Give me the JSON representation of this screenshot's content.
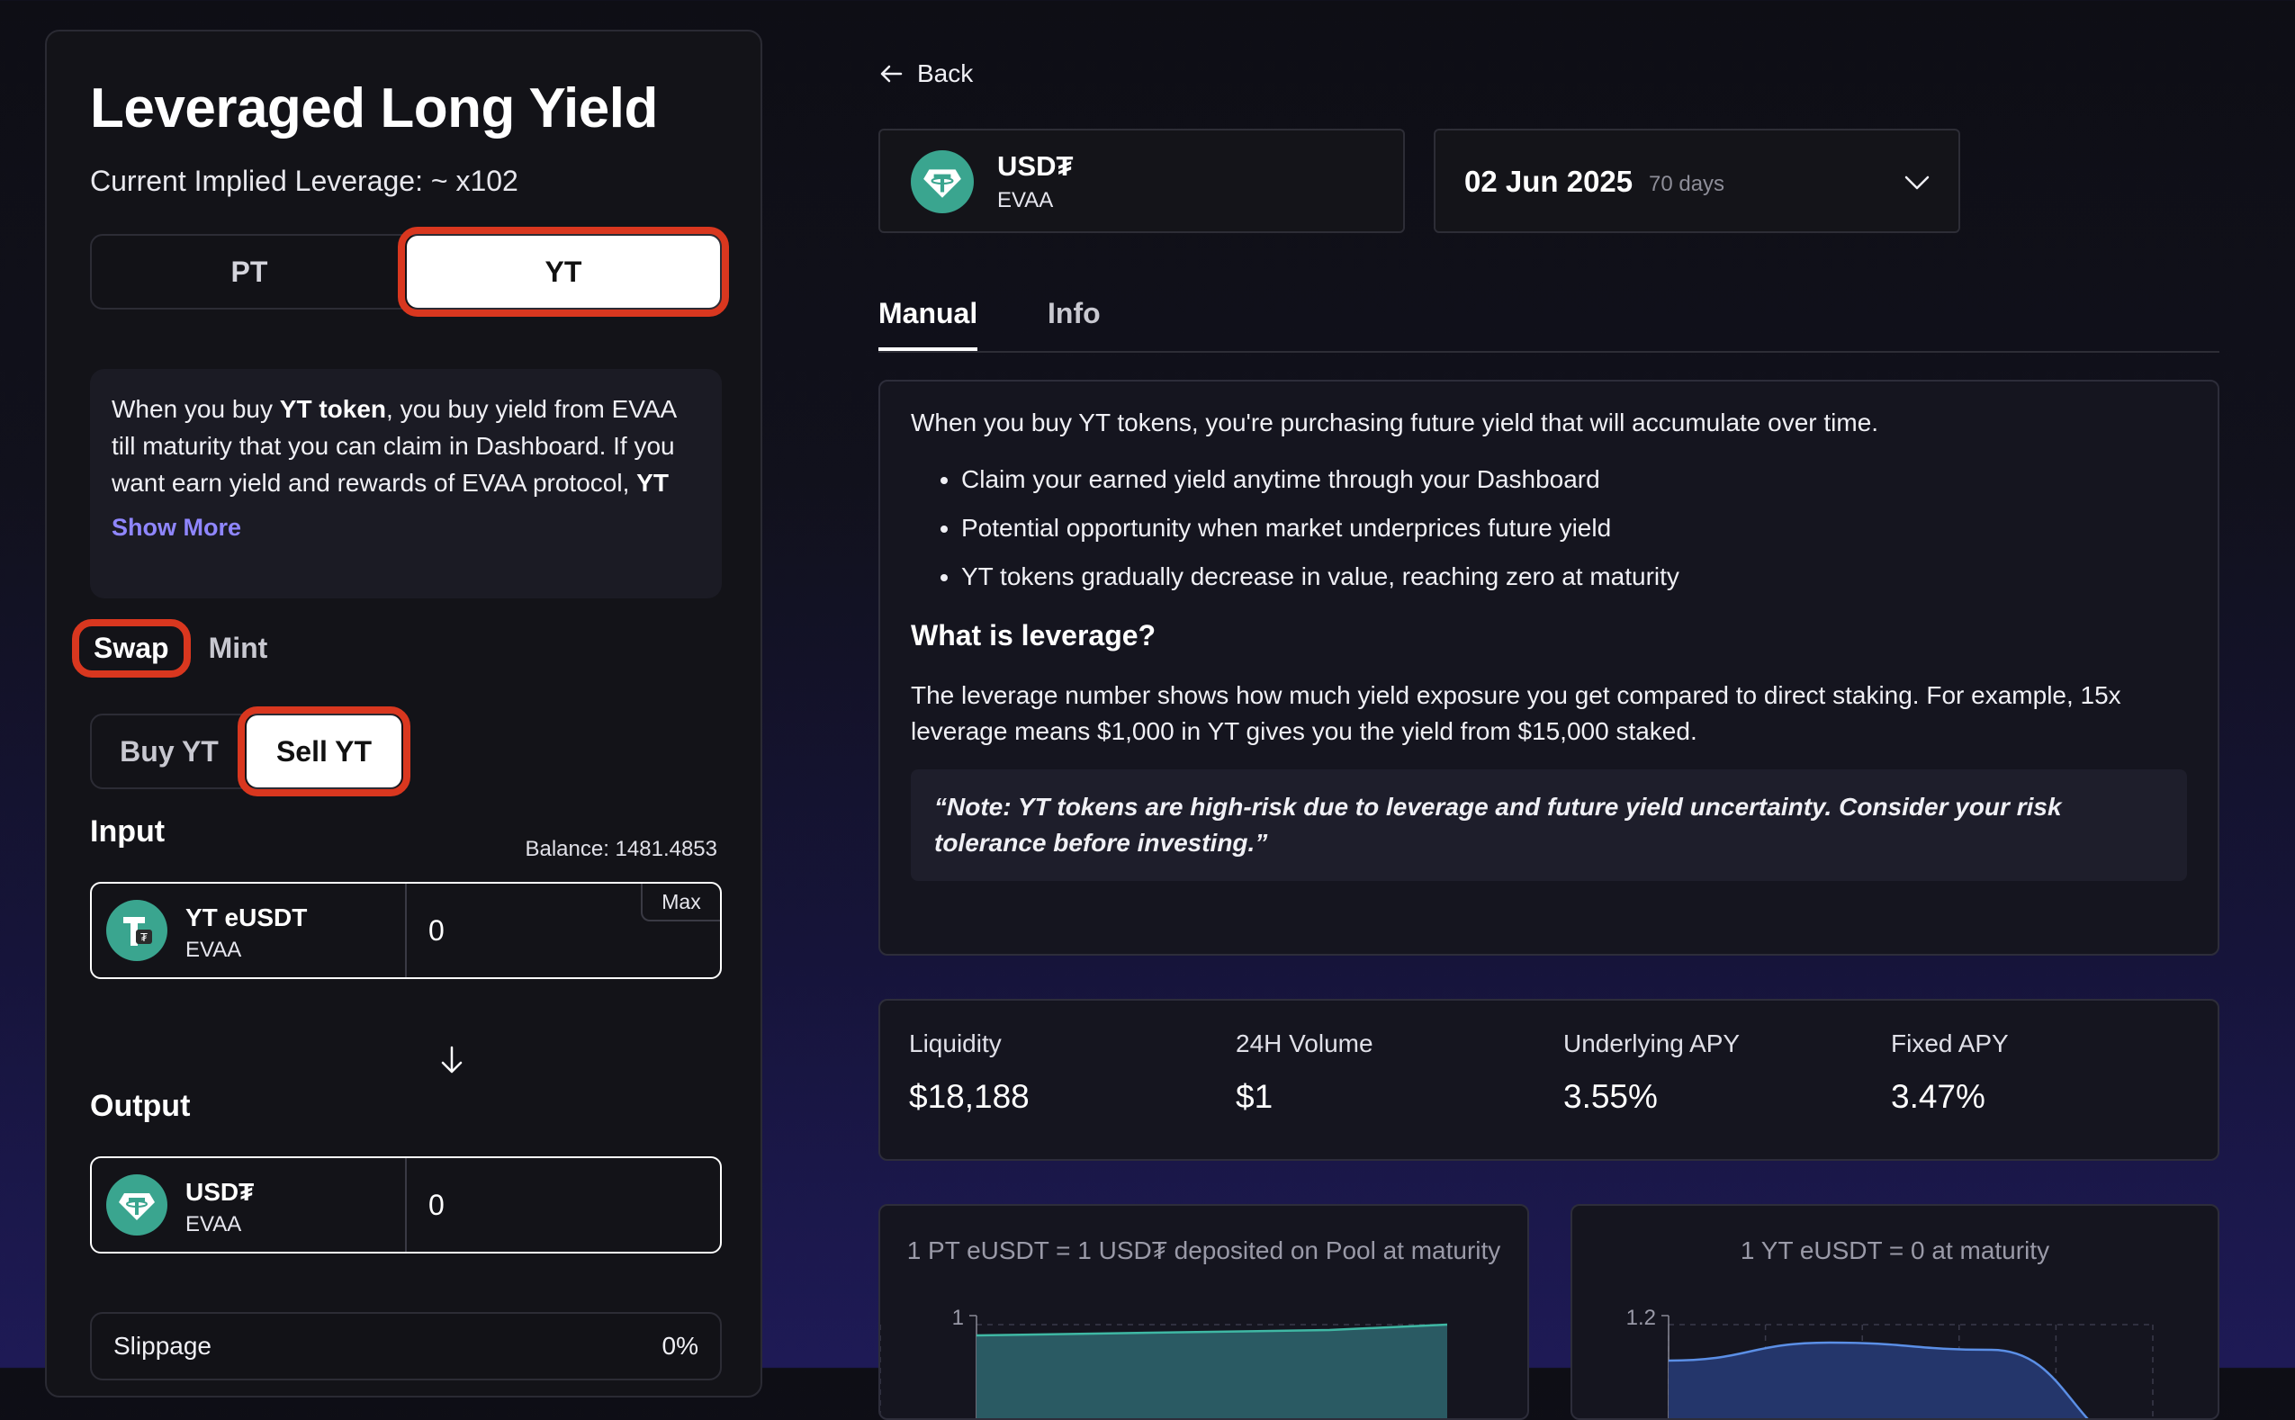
{
  "left": {
    "title": "Leveraged Long Yield",
    "leverage": "Current Implied Leverage: ~ x102",
    "type_tabs": {
      "pt": "PT",
      "yt": "YT",
      "selected": "YT"
    },
    "info": {
      "text_1": "When you buy ",
      "bold_1": "YT token",
      "text_2": ", you buy yield from EVAA till maturity that you can claim in Dashboard. If you want earn yield and rewards of EVAA protocol, ",
      "bold_2": "YT",
      "show_more": "Show More"
    },
    "mode_tabs": {
      "swap": "Swap",
      "mint": "Mint",
      "selected": "Swap"
    },
    "trade_tabs": {
      "buy": "Buy YT",
      "sell": "Sell YT",
      "selected": "Sell YT"
    },
    "input": {
      "label": "Input",
      "balance": "Balance: 1481.4853",
      "token_symbol": "YT eUSDT",
      "token_sub": "EVAA",
      "amount": "0",
      "max": "Max"
    },
    "output": {
      "label": "Output",
      "token_symbol": "USD₮",
      "token_sub": "EVAA",
      "amount": "0"
    },
    "slippage": {
      "label": "Slippage",
      "value": "0%"
    }
  },
  "right": {
    "back": "Back",
    "asset": {
      "symbol": "USD₮",
      "sub": "EVAA"
    },
    "maturity": {
      "date": "02 Jun 2025",
      "days": "70 days"
    },
    "tabs": {
      "manual": "Manual",
      "info": "Info",
      "selected": "Manual"
    },
    "manual": {
      "intro": "When you buy YT tokens, you're purchasing future yield that will accumulate over time.",
      "bullets": [
        "Claim your earned yield anytime through your Dashboard",
        "Potential opportunity when market underprices future yield",
        "YT tokens gradually decrease in value, reaching zero at maturity"
      ],
      "heading": "What is leverage?",
      "paragraph": "The leverage number shows how much yield exposure you get compared to direct staking. For example, 15x leverage means $1,000 in YT gives you the yield from $15,000 staked.",
      "note": "“Note: YT tokens are high-risk due to leverage and future yield uncertainty. Consider your risk tolerance before investing.”"
    },
    "stats": [
      {
        "label": "Liquidity",
        "value": "$18,188"
      },
      {
        "label": "24H Volume",
        "value": "$1"
      },
      {
        "label": "Underlying APY",
        "value": "3.55%"
      },
      {
        "label": "Fixed APY",
        "value": "3.47%"
      }
    ],
    "charts": {
      "pt_title": "1 PT eUSDT = 1 USD₮ deposited on Pool at maturity",
      "yt_title": "1 YT eUSDT = 0 at maturity"
    }
  },
  "chart_data": [
    {
      "type": "area",
      "title": "1 PT eUSDT = 1 USD₮ deposited on Pool at maturity",
      "y_ticks": [
        "1"
      ],
      "series": [
        {
          "values": [
            0.97,
            0.975,
            0.98,
            0.985,
            1.0
          ]
        }
      ]
    },
    {
      "type": "area",
      "title": "1 YT eUSDT = 0 at maturity",
      "y_ticks": [
        "1.2"
      ],
      "series": [
        {
          "values": [
            1.15,
            1.2,
            1.18,
            0.9
          ]
        }
      ]
    }
  ],
  "colors": {
    "accent_purple": "#8f86ff",
    "highlight_red": "#d9371f",
    "token_green": "#3aa58f",
    "chart_pt": "#3fb8a4",
    "chart_yt": "#5b8fe6"
  }
}
